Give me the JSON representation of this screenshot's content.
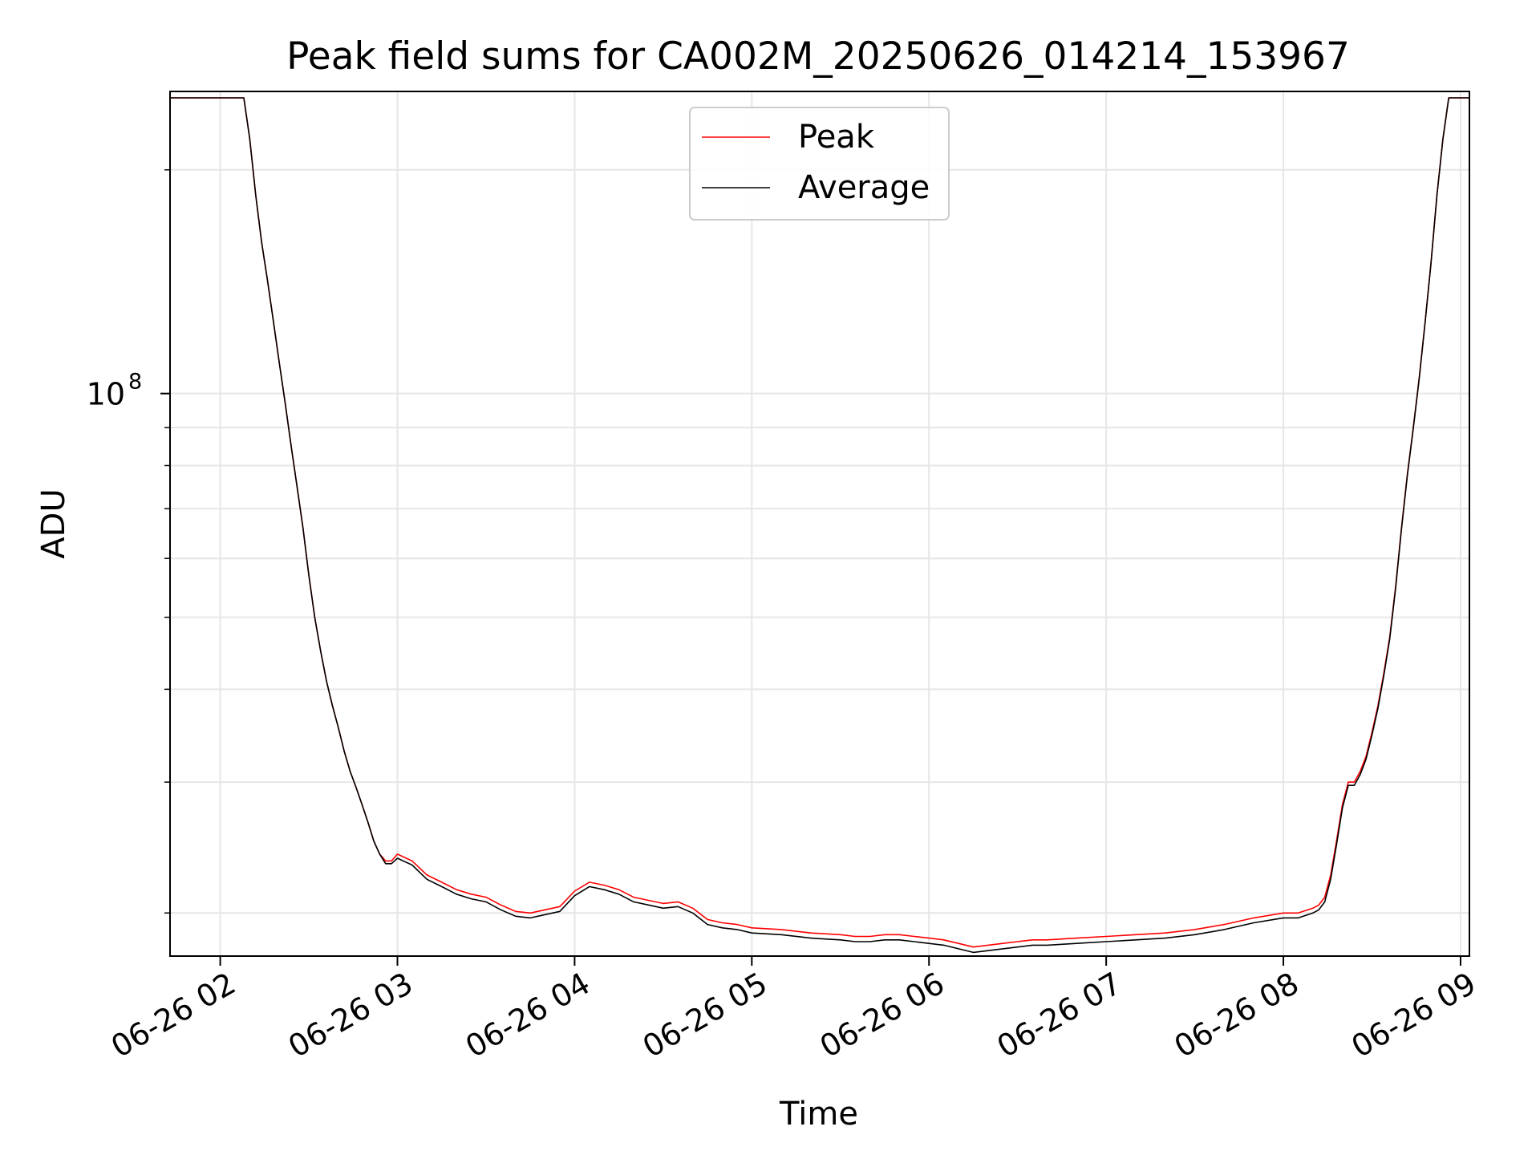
{
  "chart_data": {
    "type": "line",
    "title": "Peak field sums for CA002M_20250626_014214_153967",
    "xlabel": "Time",
    "ylabel": "ADU",
    "y_scale": "log",
    "grid": true,
    "legend_placement": "upper center",
    "xlim": [
      "06-26 01:43",
      "06-26 09:03"
    ],
    "ylim": [
      17500000,
      255000000
    ],
    "x_ticks": [
      "06-26 02",
      "06-26 03",
      "06-26 04",
      "06-26 05",
      "06-26 06",
      "06-26 07",
      "06-26 08",
      "06-26 09"
    ],
    "y_tick_major": {
      "base": "10",
      "exponent": "8",
      "value": 100000000
    },
    "y_tick_minor_values": [
      20000000,
      30000000,
      40000000,
      50000000,
      60000000,
      70000000,
      80000000,
      90000000,
      200000000
    ],
    "series": [
      {
        "name": "Peak",
        "color": "#ff0000",
        "x": [
          "01:43",
          "02:08",
          "02:10",
          "02:12",
          "02:14",
          "02:16",
          "02:18",
          "02:20",
          "02:22",
          "02:24",
          "02:26",
          "02:28",
          "02:30",
          "02:32",
          "02:34",
          "02:36",
          "02:38",
          "02:40",
          "02:42",
          "02:44",
          "02:46",
          "02:48",
          "02:50",
          "02:52",
          "02:54",
          "02:56",
          "02:58",
          "03:00",
          "03:05",
          "03:10",
          "03:15",
          "03:20",
          "03:25",
          "03:30",
          "03:35",
          "03:40",
          "03:45",
          "03:50",
          "03:55",
          "04:00",
          "04:05",
          "04:10",
          "04:15",
          "04:20",
          "04:25",
          "04:30",
          "04:35",
          "04:40",
          "04:45",
          "04:50",
          "04:55",
          "05:00",
          "05:10",
          "05:20",
          "05:30",
          "05:35",
          "05:40",
          "05:45",
          "05:50",
          "05:55",
          "06:00",
          "06:05",
          "06:10",
          "06:15",
          "06:20",
          "06:25",
          "06:30",
          "06:35",
          "06:40",
          "06:50",
          "07:00",
          "07:10",
          "07:20",
          "07:30",
          "07:40",
          "07:50",
          "08:00",
          "08:05",
          "08:10",
          "08:12",
          "08:14",
          "08:16",
          "08:18",
          "08:20",
          "08:22",
          "08:24",
          "08:26",
          "08:28",
          "08:30",
          "08:32",
          "08:34",
          "08:36",
          "08:38",
          "08:40",
          "08:42",
          "08:44",
          "08:46",
          "08:48",
          "08:50",
          "08:52",
          "08:54",
          "08:56",
          "08:58",
          "09:03"
        ],
        "values": [
          250000000,
          250000000,
          220000000,
          185000000,
          160000000,
          142000000,
          125000000,
          110000000,
          97000000,
          85000000,
          75000000,
          66000000,
          57000000,
          50000000,
          45000000,
          41000000,
          38000000,
          35500000,
          33000000,
          31000000,
          29500000,
          28000000,
          26500000,
          25000000,
          24000000,
          23500000,
          23500000,
          24000000,
          23500000,
          22500000,
          22000000,
          21500000,
          21200000,
          21000000,
          20500000,
          20100000,
          20000000,
          20200000,
          20400000,
          21400000,
          22000000,
          21800000,
          21500000,
          21000000,
          20800000,
          20600000,
          20700000,
          20300000,
          19600000,
          19400000,
          19300000,
          19100000,
          19000000,
          18800000,
          18700000,
          18600000,
          18600000,
          18700000,
          18700000,
          18600000,
          18500000,
          18400000,
          18200000,
          18000000,
          18100000,
          18200000,
          18300000,
          18400000,
          18400000,
          18500000,
          18600000,
          18700000,
          18800000,
          19000000,
          19300000,
          19700000,
          20000000,
          20000000,
          20300000,
          20500000,
          21000000,
          22500000,
          25000000,
          28000000,
          30000000,
          30000000,
          31000000,
          32500000,
          35000000,
          38000000,
          42000000,
          47000000,
          55000000,
          66000000,
          78000000,
          90000000,
          105000000,
          125000000,
          150000000,
          185000000,
          220000000,
          250000000,
          250000000,
          250000000
        ]
      },
      {
        "name": "Average",
        "color": "#000000",
        "x": [
          "01:43",
          "02:08",
          "02:10",
          "02:12",
          "02:14",
          "02:16",
          "02:18",
          "02:20",
          "02:22",
          "02:24",
          "02:26",
          "02:28",
          "02:30",
          "02:32",
          "02:34",
          "02:36",
          "02:38",
          "02:40",
          "02:42",
          "02:44",
          "02:46",
          "02:48",
          "02:50",
          "02:52",
          "02:54",
          "02:56",
          "02:58",
          "03:00",
          "03:05",
          "03:10",
          "03:15",
          "03:20",
          "03:25",
          "03:30",
          "03:35",
          "03:40",
          "03:45",
          "03:50",
          "03:55",
          "04:00",
          "04:05",
          "04:10",
          "04:15",
          "04:20",
          "04:25",
          "04:30",
          "04:35",
          "04:40",
          "04:45",
          "04:50",
          "04:55",
          "05:00",
          "05:10",
          "05:20",
          "05:30",
          "05:35",
          "05:40",
          "05:45",
          "05:50",
          "05:55",
          "06:00",
          "06:05",
          "06:10",
          "06:15",
          "06:20",
          "06:25",
          "06:30",
          "06:35",
          "06:40",
          "06:50",
          "07:00",
          "07:10",
          "07:20",
          "07:30",
          "07:40",
          "07:50",
          "08:00",
          "08:05",
          "08:10",
          "08:12",
          "08:14",
          "08:16",
          "08:18",
          "08:20",
          "08:22",
          "08:24",
          "08:26",
          "08:28",
          "08:30",
          "08:32",
          "08:34",
          "08:36",
          "08:38",
          "08:40",
          "08:42",
          "08:44",
          "08:46",
          "08:48",
          "08:50",
          "08:52",
          "08:54",
          "08:56",
          "08:58",
          "09:03"
        ],
        "values": [
          250000000,
          250000000,
          220000000,
          185000000,
          160000000,
          142000000,
          125000000,
          110000000,
          97000000,
          85000000,
          75000000,
          66000000,
          57000000,
          50000000,
          45000000,
          41000000,
          38000000,
          35500000,
          33000000,
          31000000,
          29500000,
          28000000,
          26500000,
          25000000,
          24000000,
          23300000,
          23300000,
          23700000,
          23200000,
          22200000,
          21700000,
          21200000,
          20900000,
          20700000,
          20200000,
          19800000,
          19700000,
          19900000,
          20100000,
          21100000,
          21700000,
          21500000,
          21200000,
          20700000,
          20500000,
          20300000,
          20400000,
          20000000,
          19300000,
          19100000,
          19000000,
          18800000,
          18700000,
          18500000,
          18400000,
          18300000,
          18300000,
          18400000,
          18400000,
          18300000,
          18200000,
          18100000,
          17900000,
          17700000,
          17800000,
          17900000,
          18000000,
          18100000,
          18100000,
          18200000,
          18300000,
          18400000,
          18500000,
          18700000,
          19000000,
          19400000,
          19700000,
          19700000,
          20000000,
          20200000,
          20700000,
          22200000,
          24700000,
          27700000,
          29700000,
          29700000,
          30700000,
          32200000,
          34700000,
          37700000,
          41700000,
          46700000,
          54700000,
          65700000,
          77700000,
          89700000,
          104700000,
          124700000,
          149700000,
          184700000,
          219700000,
          250000000,
          250000000,
          250000000
        ]
      }
    ]
  }
}
